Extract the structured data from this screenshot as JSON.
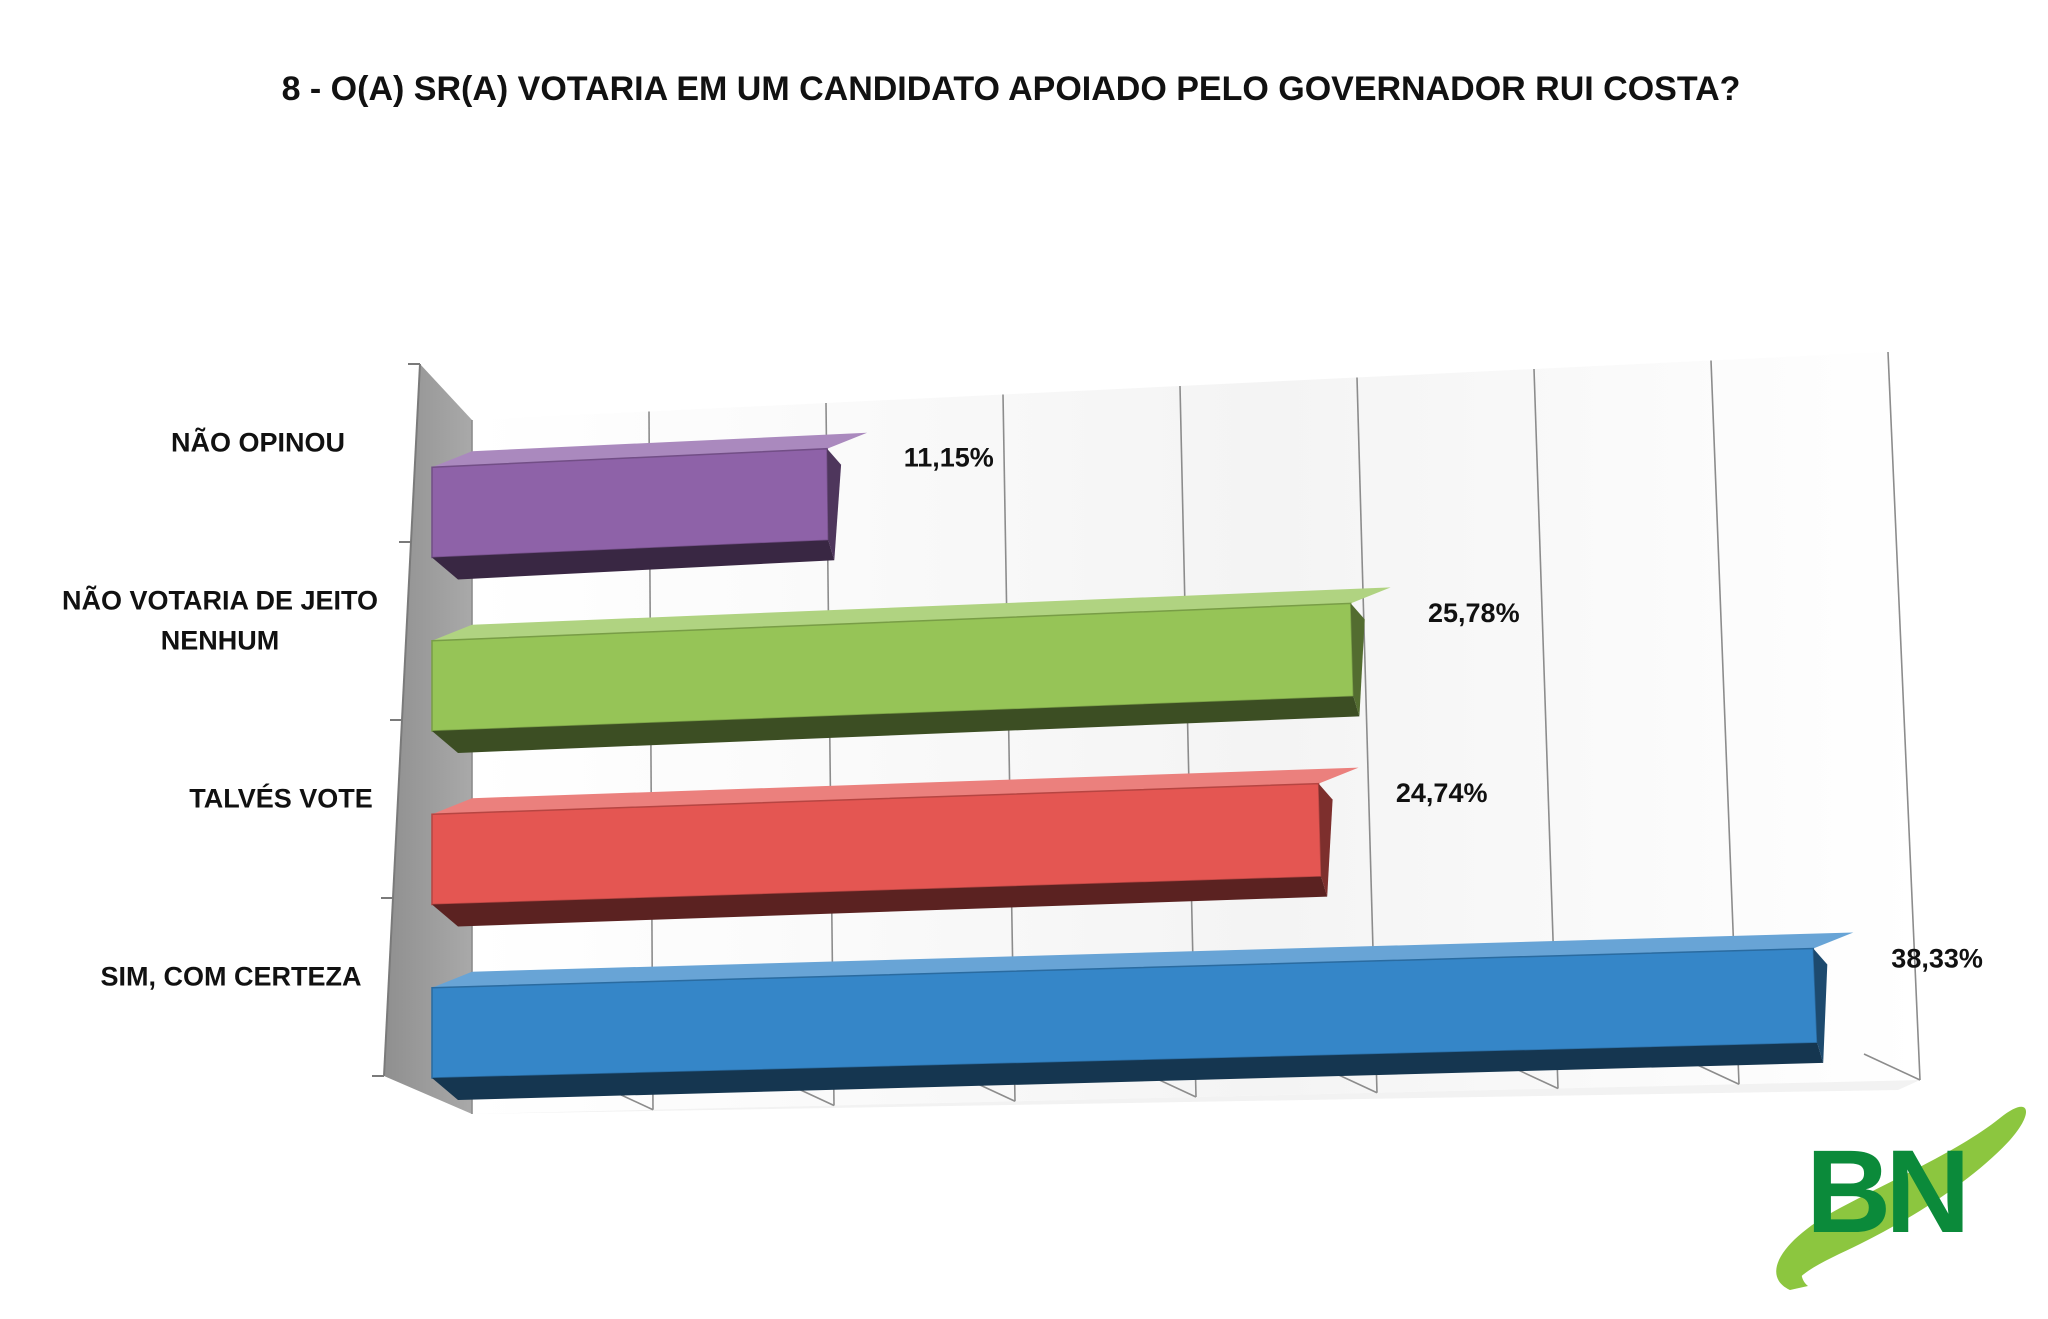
{
  "chart_data": {
    "type": "bar",
    "orientation": "horizontal",
    "style": "3d",
    "title": "8 - O(A) SR(A) VOTARIA EM UM CANDIDATO APOIADO PELO GOVERNADOR RUI COSTA?",
    "categories": [
      "NÃO OPINOU",
      "NÃO VOTARIA DE JEITO NENHUM",
      "TALVÉS VOTE",
      "SIM, COM CERTEZA"
    ],
    "category_lines": [
      [
        "NÃO OPINOU"
      ],
      [
        "NÃO VOTARIA DE JEITO",
        "NENHUM"
      ],
      [
        "TALVÉS VOTE"
      ],
      [
        "SIM, COM CERTEZA"
      ]
    ],
    "values": [
      11.15,
      25.78,
      24.74,
      38.33
    ],
    "data_labels": [
      "11,15%",
      "25,78%",
      "24,74%",
      "38,33%"
    ],
    "colors": [
      "#8e62a8",
      "#96c457",
      "#e45652",
      "#3586c8"
    ],
    "xlim": [
      0,
      40
    ],
    "xlabel": "",
    "ylabel": "",
    "grid": true,
    "legend": "none"
  },
  "logo": {
    "text": "BN",
    "colors": {
      "letters": "#0b8a3a",
      "swoosh": "#8cc63f"
    }
  }
}
